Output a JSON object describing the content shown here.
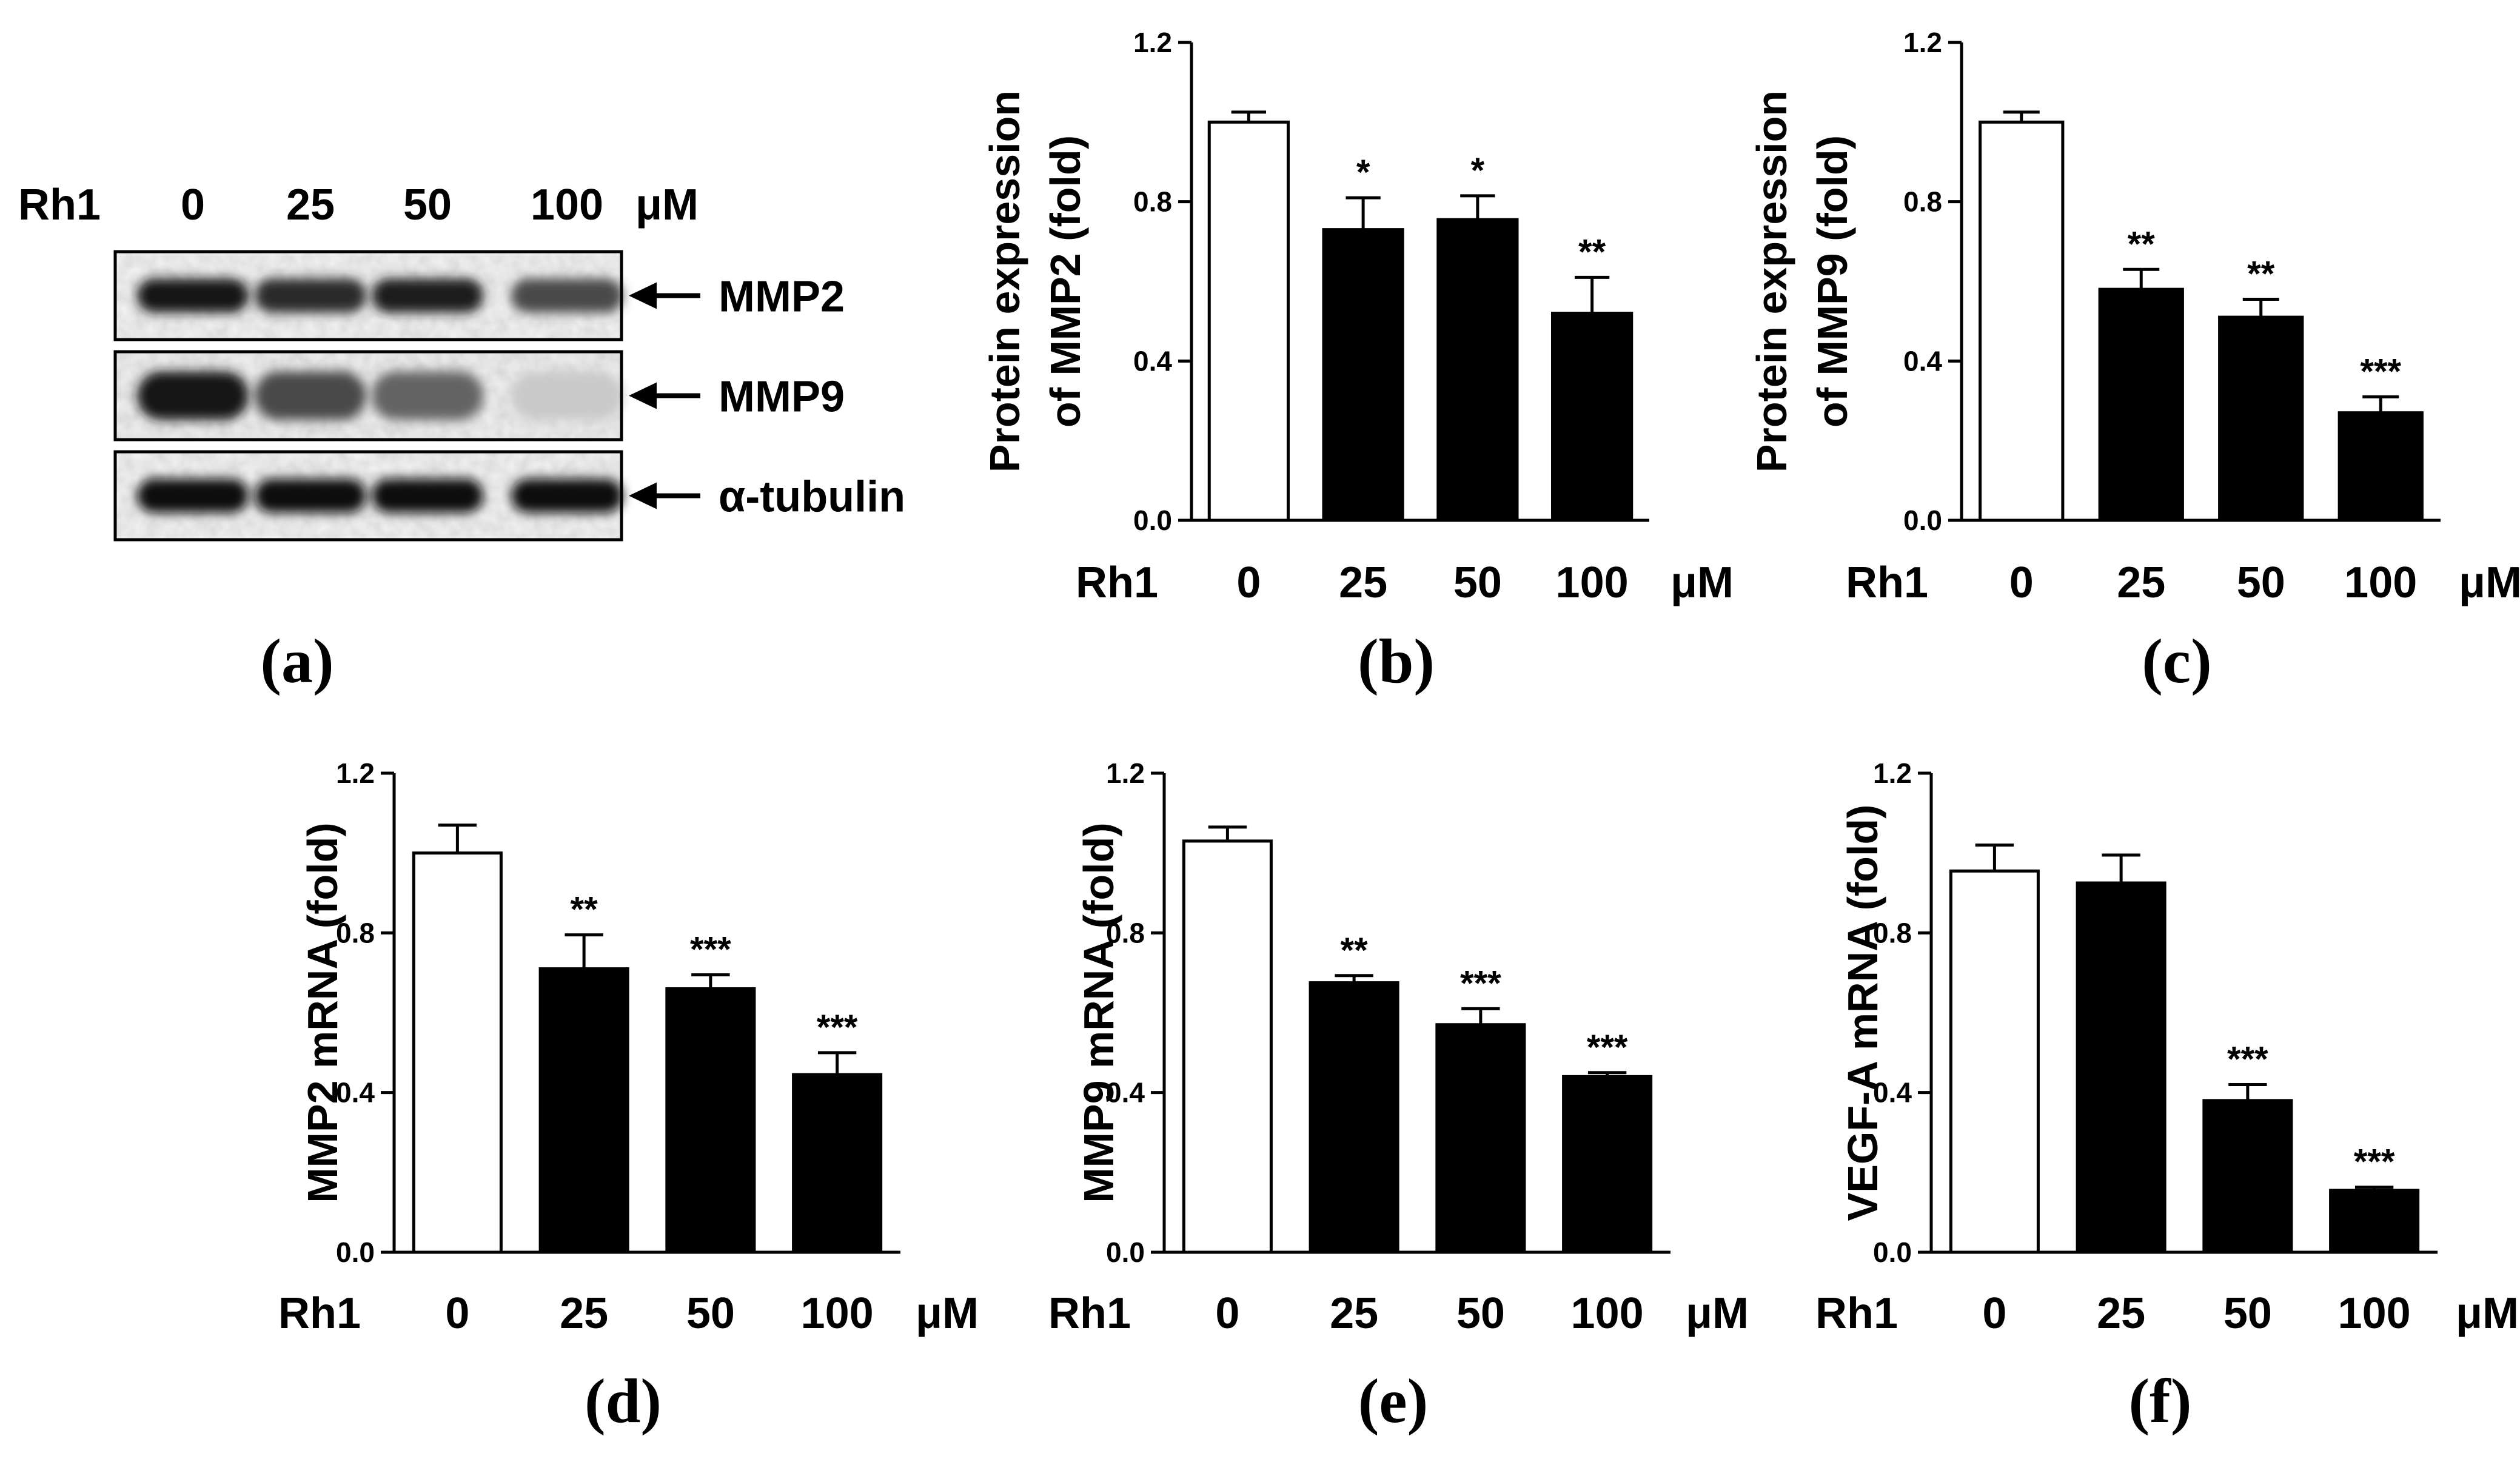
{
  "blot": {
    "treatment_label": "Rh1",
    "doses": [
      "0",
      "25",
      "50",
      "100"
    ],
    "unit": "μM",
    "rows": [
      {
        "label": "MMP2",
        "intensities": [
          0.95,
          0.85,
          0.92,
          0.72
        ]
      },
      {
        "label": "MMP9",
        "intensities": [
          0.95,
          0.72,
          0.6,
          0.15
        ]
      },
      {
        "label": "α-tubulin",
        "intensities": [
          1.0,
          1.0,
          1.0,
          0.97
        ]
      }
    ],
    "panel_label": "(a)"
  },
  "chart_data": [
    {
      "type": "bar",
      "panel_label": "(b)",
      "title": "",
      "ylabel_lines": [
        "Protein expression",
        "of MMP2 (fold)"
      ],
      "xlabel": "Rh1",
      "x_unit": "μM",
      "categories": [
        "0",
        "25",
        "50",
        "100"
      ],
      "values": [
        1.0,
        0.73,
        0.755,
        0.52
      ],
      "errors": [
        0.025,
        0.08,
        0.06,
        0.09
      ],
      "significance": [
        "",
        "*",
        "*",
        "**"
      ],
      "ylim": [
        0,
        1.2
      ],
      "yticks": [
        "0.0",
        "0.4",
        "0.8",
        "1.2"
      ]
    },
    {
      "type": "bar",
      "panel_label": "(c)",
      "title": "",
      "ylabel_lines": [
        "Protein expression",
        "of MMP9 (fold)"
      ],
      "xlabel": "Rh1",
      "x_unit": "μM",
      "categories": [
        "0",
        "25",
        "50",
        "100"
      ],
      "values": [
        1.0,
        0.58,
        0.51,
        0.27
      ],
      "errors": [
        0.025,
        0.05,
        0.045,
        0.04
      ],
      "significance": [
        "",
        "**",
        "**",
        "***"
      ],
      "ylim": [
        0,
        1.2
      ],
      "yticks": [
        "0.0",
        "0.4",
        "0.8",
        "1.2"
      ]
    },
    {
      "type": "bar",
      "panel_label": "(d)",
      "title": "",
      "ylabel_lines": [
        "MMP2 mRNA (fold)"
      ],
      "xlabel": "Rh1",
      "x_unit": "μM",
      "categories": [
        "0",
        "25",
        "50",
        "100"
      ],
      "values": [
        1.0,
        0.71,
        0.66,
        0.445
      ],
      "errors": [
        0.07,
        0.085,
        0.035,
        0.055
      ],
      "significance": [
        "",
        "**",
        "***",
        "***"
      ],
      "ylim": [
        0,
        1.2
      ],
      "yticks": [
        "0.0",
        "0.4",
        "0.8",
        "1.2"
      ]
    },
    {
      "type": "bar",
      "panel_label": "(e)",
      "title": "",
      "ylabel_lines": [
        "MMP9 mRNA (fold)"
      ],
      "xlabel": "Rh1",
      "x_unit": "μM",
      "categories": [
        "0",
        "25",
        "50",
        "100"
      ],
      "values": [
        1.03,
        0.675,
        0.57,
        0.44
      ],
      "errors": [
        0.035,
        0.018,
        0.04,
        0.01
      ],
      "significance": [
        "",
        "**",
        "***",
        "***"
      ],
      "ylim": [
        0,
        1.2
      ],
      "yticks": [
        "0.0",
        "0.4",
        "0.8",
        "1.2"
      ]
    },
    {
      "type": "bar",
      "panel_label": "(f)",
      "title": "",
      "ylabel_lines": [
        "VEGF-A mRNA (fold)"
      ],
      "xlabel": "Rh1",
      "x_unit": "μM",
      "categories": [
        "0",
        "25",
        "50",
        "100"
      ],
      "values": [
        0.955,
        0.925,
        0.38,
        0.155
      ],
      "errors": [
        0.065,
        0.07,
        0.04,
        0.008
      ],
      "significance": [
        "",
        "",
        "***",
        "***"
      ],
      "ylim": [
        0,
        1.2
      ],
      "yticks": [
        "0.0",
        "0.4",
        "0.8",
        "1.2"
      ]
    }
  ]
}
